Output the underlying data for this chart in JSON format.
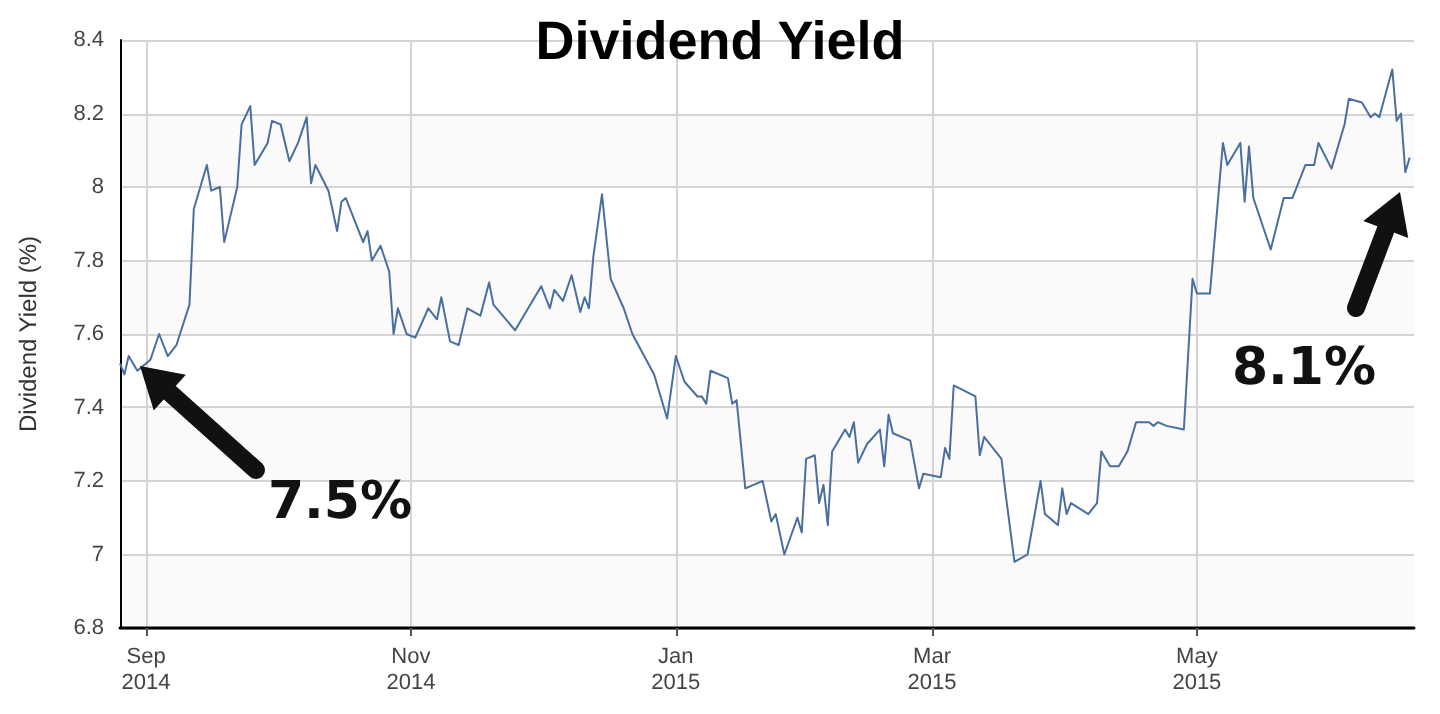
{
  "chart_data": {
    "type": "line",
    "title": "Dividend Yield",
    "ylabel": "Dividend Yield (%)",
    "x": [
      "2014-08-26",
      "2014-08-27",
      "2014-08-28",
      "2014-08-30",
      "2014-09-02",
      "2014-09-04",
      "2014-09-06",
      "2014-09-08",
      "2014-09-11",
      "2014-09-12",
      "2014-09-15",
      "2014-09-16",
      "2014-09-18",
      "2014-09-19",
      "2014-09-22",
      "2014-09-23",
      "2014-09-25",
      "2014-09-26",
      "2014-09-29",
      "2014-09-30",
      "2014-10-02",
      "2014-10-04",
      "2014-10-06",
      "2014-10-08",
      "2014-10-09",
      "2014-10-10",
      "2014-10-13",
      "2014-10-15",
      "2014-10-16",
      "2014-10-17",
      "2014-10-21",
      "2014-10-22",
      "2014-10-23",
      "2014-10-25",
      "2014-10-27",
      "2014-10-28",
      "2014-10-29",
      "2014-10-31",
      "2014-11-02",
      "2014-11-05",
      "2014-11-07",
      "2014-11-08",
      "2014-11-10",
      "2014-11-12",
      "2014-11-14",
      "2014-11-17",
      "2014-11-19",
      "2014-11-20",
      "2014-11-25",
      "2014-12-01",
      "2014-12-03",
      "2014-12-04",
      "2014-12-06",
      "2014-12-08",
      "2014-12-10",
      "2014-12-11",
      "2014-12-12",
      "2014-12-13",
      "2014-12-15",
      "2014-12-17",
      "2014-12-20",
      "2014-12-22",
      "2014-12-27",
      "2014-12-30",
      "2015-01-01",
      "2015-01-03",
      "2015-01-06",
      "2015-01-07",
      "2015-01-08",
      "2015-01-09",
      "2015-01-13",
      "2015-01-14",
      "2015-01-15",
      "2015-01-17",
      "2015-01-21",
      "2015-01-23",
      "2015-01-24",
      "2015-01-26",
      "2015-01-29",
      "2015-01-30",
      "2015-01-31",
      "2015-02-02",
      "2015-02-03",
      "2015-02-04",
      "2015-02-05",
      "2015-02-06",
      "2015-02-09",
      "2015-02-10",
      "2015-02-11",
      "2015-02-12",
      "2015-02-14",
      "2015-02-17",
      "2015-02-18",
      "2015-02-19",
      "2015-02-20",
      "2015-02-24",
      "2015-02-26",
      "2015-02-27",
      "2015-03-03",
      "2015-03-04",
      "2015-03-05",
      "2015-03-06",
      "2015-03-11",
      "2015-03-12",
      "2015-03-13",
      "2015-03-17",
      "2015-03-18",
      "2015-03-20",
      "2015-03-23",
      "2015-03-26",
      "2015-03-27",
      "2015-03-30",
      "2015-03-31",
      "2015-04-01",
      "2015-04-02",
      "2015-04-06",
      "2015-04-08",
      "2015-04-09",
      "2015-04-11",
      "2015-04-13",
      "2015-04-15",
      "2015-04-17",
      "2015-04-20",
      "2015-04-21",
      "2015-04-22",
      "2015-04-24",
      "2015-04-28",
      "2015-04-30",
      "2015-05-01",
      "2015-05-04",
      "2015-05-07",
      "2015-05-08",
      "2015-05-11",
      "2015-05-12",
      "2015-05-13",
      "2015-05-14",
      "2015-05-18",
      "2015-05-21",
      "2015-05-23",
      "2015-05-26",
      "2015-05-28",
      "2015-05-29",
      "2015-06-01",
      "2015-06-04",
      "2015-06-05",
      "2015-06-08",
      "2015-06-10",
      "2015-06-11",
      "2015-06-12",
      "2015-06-15",
      "2015-06-16",
      "2015-06-17",
      "2015-06-18",
      "2015-06-19"
    ],
    "series": [
      {
        "color": "#4a6f9f",
        "values": [
          7.52,
          7.49,
          7.54,
          7.5,
          7.53,
          7.6,
          7.54,
          7.57,
          7.68,
          7.94,
          8.06,
          7.99,
          8.0,
          7.85,
          8.0,
          8.17,
          8.22,
          8.06,
          8.12,
          8.18,
          8.17,
          8.07,
          8.12,
          8.19,
          8.01,
          8.06,
          7.99,
          7.88,
          7.96,
          7.97,
          7.85,
          7.88,
          7.8,
          7.84,
          7.77,
          7.6,
          7.67,
          7.6,
          7.59,
          7.67,
          7.64,
          7.7,
          7.58,
          7.57,
          7.67,
          7.65,
          7.74,
          7.68,
          7.61,
          7.73,
          7.67,
          7.72,
          7.69,
          7.76,
          7.66,
          7.7,
          7.67,
          7.81,
          7.98,
          7.75,
          7.67,
          7.6,
          7.49,
          7.37,
          7.54,
          7.47,
          7.43,
          7.43,
          7.41,
          7.5,
          7.48,
          7.41,
          7.42,
          7.18,
          7.2,
          7.09,
          7.11,
          7.0,
          7.1,
          7.06,
          7.26,
          7.27,
          7.14,
          7.19,
          7.08,
          7.28,
          7.34,
          7.32,
          7.36,
          7.25,
          7.3,
          7.34,
          7.24,
          7.38,
          7.33,
          7.31,
          7.18,
          7.22,
          7.21,
          7.29,
          7.26,
          7.46,
          7.43,
          7.27,
          7.32,
          7.26,
          7.16,
          6.98,
          7.0,
          7.2,
          7.11,
          7.08,
          7.18,
          7.11,
          7.14,
          7.11,
          7.14,
          7.28,
          7.24,
          7.24,
          7.28,
          7.36,
          7.36,
          7.35,
          7.36,
          7.35,
          7.34,
          7.75,
          7.71,
          7.71,
          8.12,
          8.06,
          8.12,
          7.96,
          8.11,
          7.97,
          7.83,
          7.97,
          7.97,
          8.06,
          8.06,
          8.12,
          8.05,
          8.17,
          8.24,
          8.23,
          8.19,
          8.2,
          8.19,
          8.32,
          8.18,
          8.2,
          8.04,
          8.08
        ]
      }
    ],
    "xlim": [
      "2014-08-26",
      "2015-06-20"
    ],
    "xticks": [
      {
        "value": "2014-09-01",
        "label": "Sep\n2014"
      },
      {
        "value": "2014-11-01",
        "label": "Nov\n2014"
      },
      {
        "value": "2015-01-01",
        "label": "Jan\n2015"
      },
      {
        "value": "2015-03-01",
        "label": "Mar\n2015"
      },
      {
        "value": "2015-05-01",
        "label": "May\n2015"
      }
    ],
    "ylim": [
      6.8,
      8.4
    ],
    "yticks": [
      6.8,
      7,
      7.2,
      7.4,
      7.6,
      7.8,
      8,
      8.2,
      8.4
    ],
    "grid": true,
    "marker": "none",
    "line_style": "solid",
    "annotations": [
      "7.5%",
      "8.1%"
    ]
  }
}
